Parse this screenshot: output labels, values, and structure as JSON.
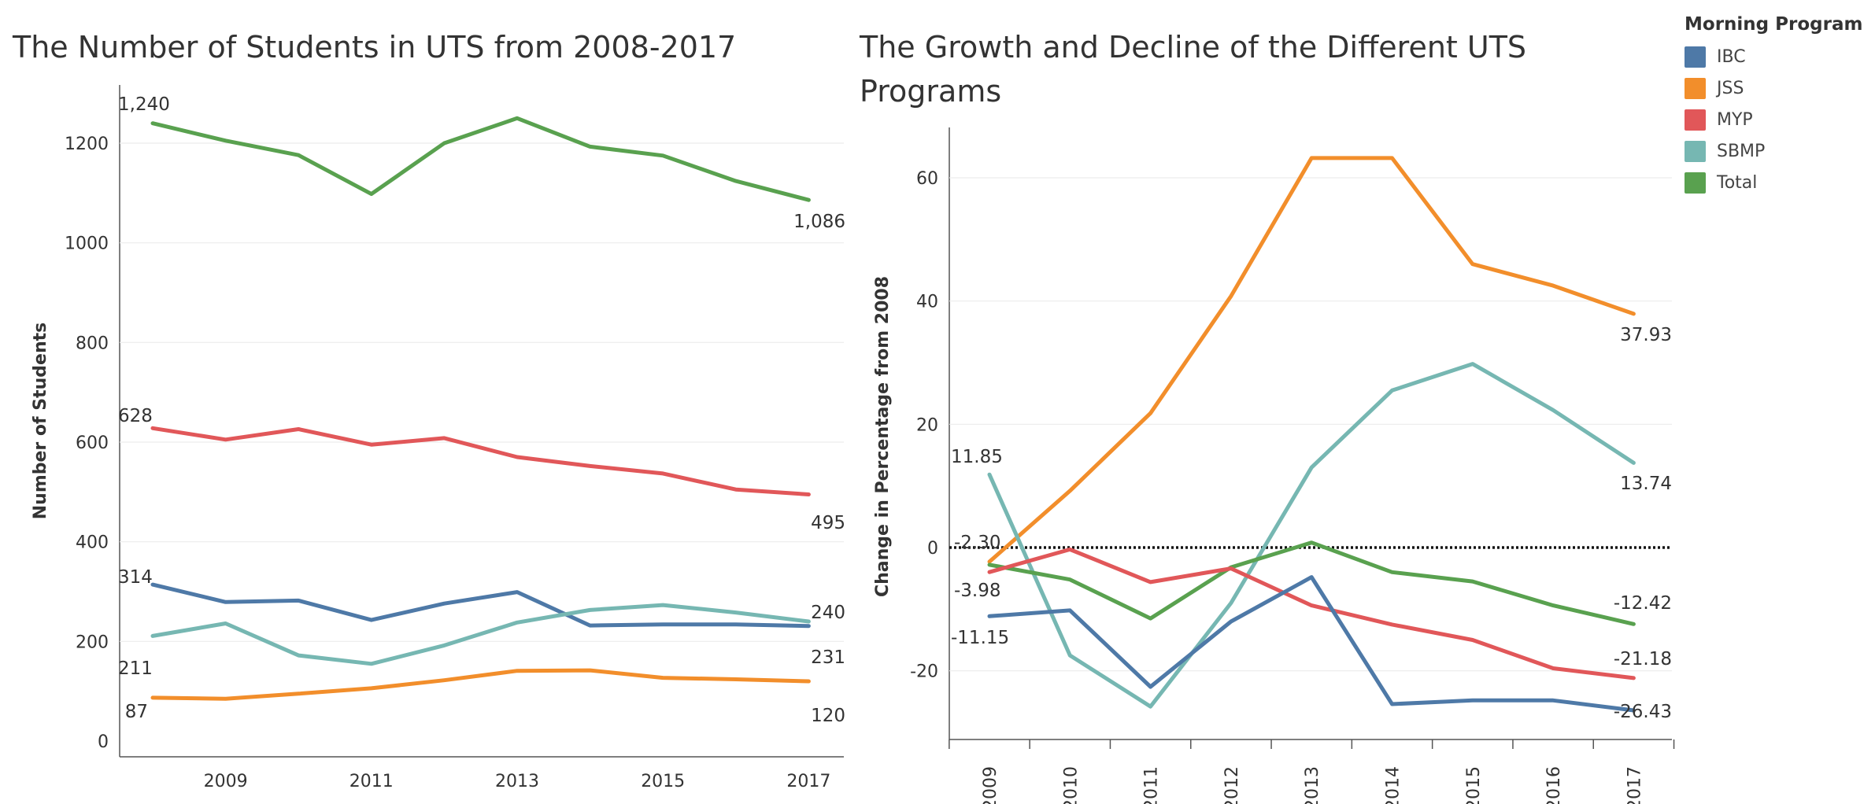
{
  "chart_data": [
    {
      "type": "line",
      "title": "The Number of Students in UTS from 2008-2017",
      "ylabel": "Number of Students",
      "xlabel": "",
      "x": [
        2008,
        2009,
        2010,
        2011,
        2012,
        2013,
        2014,
        2015,
        2016,
        2017
      ],
      "xticks": [
        "2009",
        "2011",
        "2013",
        "2015",
        "2017"
      ],
      "yticks": [
        "0",
        "200",
        "400",
        "600",
        "800",
        "1000",
        "1200"
      ],
      "ylim": [
        0,
        1320
      ],
      "series": [
        {
          "name": "Total",
          "values": [
            1240,
            1205,
            1176,
            1098,
            1200,
            1250,
            1193,
            1175,
            1124,
            1086
          ],
          "start_label": "1,240",
          "end_label": "1,086"
        },
        {
          "name": "MYP",
          "values": [
            628,
            605,
            626,
            595,
            608,
            570,
            552,
            537,
            505,
            495
          ],
          "start_label": "628",
          "end_label": "495"
        },
        {
          "name": "IBC",
          "values": [
            314,
            279,
            282,
            243,
            276,
            299,
            232,
            234,
            234,
            231
          ],
          "start_label": "314",
          "end_label": "231"
        },
        {
          "name": "SBMP",
          "values": [
            211,
            236,
            172,
            155,
            192,
            238,
            263,
            273,
            258,
            240
          ],
          "start_label": "211",
          "end_label": "240"
        },
        {
          "name": "JSS",
          "values": [
            87,
            85,
            95,
            106,
            122,
            141,
            142,
            127,
            124,
            120
          ],
          "start_label": "87",
          "end_label": "120"
        }
      ]
    },
    {
      "type": "line",
      "title": "The Growth and Decline of the Different UTS Programs",
      "ylabel": "Change in Percentage from 2008",
      "xlabel": "",
      "x": [
        "2009",
        "2010",
        "2011",
        "2012",
        "2013",
        "2014",
        "2015",
        "2016",
        "2017"
      ],
      "yticks": [
        "-20",
        "0",
        "20",
        "40",
        "60"
      ],
      "ylim": [
        -31,
        68
      ],
      "reference_line": 0,
      "series": [
        {
          "name": "JSS",
          "values": [
            -2.3,
            9.2,
            21.8,
            40.8,
            63.2,
            63.2,
            46.0,
            42.5,
            37.93
          ],
          "start_label": "-2.30",
          "end_label": "37.93"
        },
        {
          "name": "SBMP",
          "values": [
            11.85,
            -17.5,
            -25.8,
            -9.0,
            13.0,
            25.5,
            29.8,
            22.3,
            13.74
          ],
          "start_label": "11.85",
          "end_label": "13.74"
        },
        {
          "name": "Total",
          "values": [
            -2.8,
            -5.2,
            -11.5,
            -3.2,
            0.8,
            -4.0,
            -5.5,
            -9.4,
            -12.42
          ],
          "start_label": "",
          "end_label": "-12.42"
        },
        {
          "name": "MYP",
          "values": [
            -3.98,
            -0.3,
            -5.6,
            -3.4,
            -9.4,
            -12.5,
            -15.0,
            -19.6,
            -21.18
          ],
          "start_label": "-3.98",
          "end_label": "-21.18"
        },
        {
          "name": "IBC",
          "values": [
            -11.15,
            -10.2,
            -22.6,
            -12.0,
            -4.8,
            -25.4,
            -24.8,
            -24.8,
            -26.43
          ],
          "start_label": "-11.15",
          "end_label": "-26.43"
        }
      ]
    }
  ],
  "legend": {
    "title": "Morning Program",
    "items": [
      {
        "name": "IBC",
        "color": "#4e79a7"
      },
      {
        "name": "JSS",
        "color": "#f28e2b"
      },
      {
        "name": "MYP",
        "color": "#e15759"
      },
      {
        "name": "SBMP",
        "color": "#76b7b2"
      },
      {
        "name": "Total",
        "color": "#59a14f"
      }
    ]
  }
}
